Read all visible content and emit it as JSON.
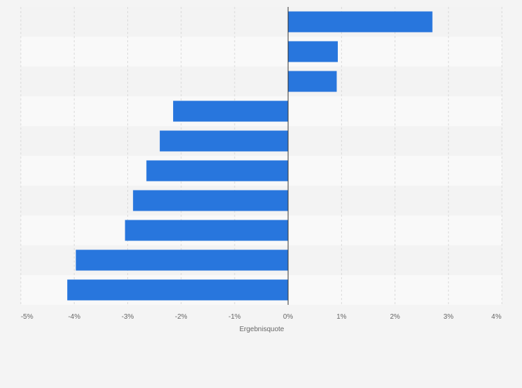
{
  "chart_data": {
    "type": "bar",
    "orientation": "horizontal",
    "categories": [
      "",
      "",
      "",
      "",
      "",
      "",
      "",
      "",
      "",
      ""
    ],
    "values": [
      2.7,
      0.93,
      0.91,
      -2.15,
      -2.4,
      -2.65,
      -2.9,
      -3.05,
      -3.97,
      -4.13
    ],
    "x_ticks": [
      -5,
      -4,
      -3,
      -2,
      -1,
      0,
      1,
      2,
      3,
      4
    ],
    "x_tick_labels": [
      "-5%",
      "-4%",
      "-3%",
      "-2%",
      "-1%",
      "0%",
      "1%",
      "2%",
      "3%",
      "4%"
    ],
    "xlim": [
      -5,
      4
    ],
    "xlabel": "Ergebnisquote",
    "ylabel": "",
    "title": "",
    "grid": true,
    "legend": "none",
    "colors": {
      "bar": "#2876dd",
      "band_light": "#f9f9f9",
      "band_dark": "#f3f3f3",
      "grid": "#d9d9d9",
      "zero_line": "#333333",
      "tick_text": "#666666"
    }
  }
}
